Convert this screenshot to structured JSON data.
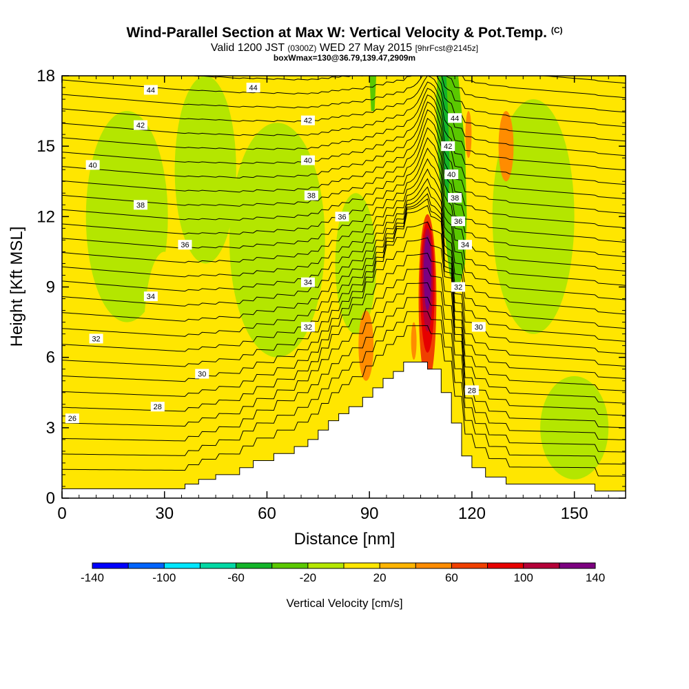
{
  "header": {
    "title": "Wind-Parallel Section at Max W: Vertical Velocity & Pot.Temp.",
    "copyright": "(C)",
    "valid_prefix": "Valid 1200 JST",
    "valid_utc": "(0300Z)",
    "valid_date": "WED 27 May 2015",
    "forecast": "[9hrFcst@2145z]",
    "box_info": "boxWmax=130@36.79,139.47,2909m"
  },
  "chart_data": {
    "type": "heatmap",
    "title": "Wind-Parallel Section at Max W: Vertical Velocity & Pot.Temp.",
    "xlabel": "Distance [nm]",
    "ylabel": "Height [Kft MSL]",
    "xlim": [
      0,
      165
    ],
    "ylim": [
      0,
      18
    ],
    "xticks": [
      "0",
      "30",
      "60",
      "90",
      "120",
      "150"
    ],
    "yticks": [
      "0",
      "3",
      "6",
      "9",
      "12",
      "15",
      "18"
    ],
    "colorbar": {
      "label": "Vertical Velocity [cm/s]",
      "tick_labels": [
        "-140",
        "-100",
        "-60",
        "-20",
        "20",
        "60",
        "100",
        "140"
      ],
      "colors": [
        "#0000ff",
        "#0064ff",
        "#00e6ff",
        "#00d8a4",
        "#12b428",
        "#5ac800",
        "#b4e600",
        "#ffe600",
        "#ffb400",
        "#ff8c00",
        "#f04000",
        "#e60000",
        "#b40038",
        "#7c0080"
      ]
    },
    "terrain_kft": [
      [
        0,
        0.4
      ],
      [
        36,
        0.4
      ],
      [
        36,
        0.6
      ],
      [
        40,
        0.6
      ],
      [
        40,
        0.8
      ],
      [
        45,
        0.8
      ],
      [
        45,
        1.0
      ],
      [
        52,
        1.0
      ],
      [
        52,
        1.3
      ],
      [
        56,
        1.3
      ],
      [
        56,
        1.6
      ],
      [
        62,
        1.6
      ],
      [
        62,
        1.9
      ],
      [
        68,
        1.9
      ],
      [
        68,
        2.2
      ],
      [
        72,
        2.2
      ],
      [
        72,
        2.5
      ],
      [
        75,
        2.5
      ],
      [
        75,
        2.9
      ],
      [
        78,
        2.9
      ],
      [
        78,
        3.3
      ],
      [
        81,
        3.3
      ],
      [
        81,
        3.6
      ],
      [
        84,
        3.6
      ],
      [
        84,
        3.9
      ],
      [
        88,
        3.9
      ],
      [
        88,
        4.3
      ],
      [
        91,
        4.3
      ],
      [
        91,
        4.7
      ],
      [
        94,
        4.7
      ],
      [
        94,
        5.1
      ],
      [
        97,
        5.1
      ],
      [
        97,
        5.4
      ],
      [
        100,
        5.4
      ],
      [
        100,
        5.8
      ],
      [
        107,
        5.8
      ],
      [
        107,
        5.5
      ],
      [
        111,
        5.5
      ],
      [
        111,
        4.5
      ],
      [
        114,
        4.5
      ],
      [
        114,
        3.2
      ],
      [
        117,
        3.2
      ],
      [
        117,
        1.8
      ],
      [
        120,
        1.8
      ],
      [
        120,
        1.3
      ],
      [
        124,
        1.3
      ],
      [
        124,
        0.9
      ],
      [
        130,
        0.9
      ],
      [
        130,
        0.6
      ],
      [
        156,
        0.6
      ],
      [
        156,
        0.3
      ],
      [
        165,
        0.3
      ]
    ],
    "theta_labels": [
      {
        "text": "44",
        "x": 26,
        "y": 17.4
      },
      {
        "text": "44",
        "x": 56,
        "y": 17.5
      },
      {
        "text": "42",
        "x": 23,
        "y": 15.9
      },
      {
        "text": "42",
        "x": 72,
        "y": 16.1
      },
      {
        "text": "40",
        "x": 9,
        "y": 14.2
      },
      {
        "text": "40",
        "x": 72,
        "y": 14.4
      },
      {
        "text": "38",
        "x": 23,
        "y": 12.5
      },
      {
        "text": "38",
        "x": 73,
        "y": 12.9
      },
      {
        "text": "36",
        "x": 36,
        "y": 10.8
      },
      {
        "text": "36",
        "x": 82,
        "y": 12.0
      },
      {
        "text": "34",
        "x": 26,
        "y": 8.6
      },
      {
        "text": "34",
        "x": 72,
        "y": 9.2
      },
      {
        "text": "32",
        "x": 10,
        "y": 6.8
      },
      {
        "text": "32",
        "x": 72,
        "y": 7.3
      },
      {
        "text": "30",
        "x": 41,
        "y": 5.3
      },
      {
        "text": "30",
        "x": 122,
        "y": 7.3
      },
      {
        "text": "28",
        "x": 28,
        "y": 3.9
      },
      {
        "text": "28",
        "x": 120,
        "y": 4.6
      },
      {
        "text": "26",
        "x": 3,
        "y": 3.4
      },
      {
        "text": "44",
        "x": 115,
        "y": 16.2
      },
      {
        "text": "42",
        "x": 113,
        "y": 15.0
      },
      {
        "text": "40",
        "x": 114,
        "y": 13.8
      },
      {
        "text": "38",
        "x": 115,
        "y": 12.8
      },
      {
        "text": "36",
        "x": 116,
        "y": 11.8
      },
      {
        "text": "34",
        "x": 118,
        "y": 10.8
      },
      {
        "text": "32",
        "x": 116,
        "y": 9.0
      }
    ],
    "w_features": [
      {
        "shape": "ellipse",
        "cx": 19,
        "cy": 12.0,
        "rx": 12,
        "ry": 4.5,
        "value": -20
      },
      {
        "shape": "ellipse",
        "cx": 42,
        "cy": 14.0,
        "rx": 9,
        "ry": 4.0,
        "value": -20
      },
      {
        "shape": "ellipse",
        "cx": 63,
        "cy": 11.0,
        "rx": 14,
        "ry": 5.0,
        "value": -20
      },
      {
        "shape": "ellipse",
        "cx": 86,
        "cy": 10.0,
        "rx": 6,
        "ry": 3.0,
        "value": -20
      },
      {
        "shape": "ellipse",
        "cx": 138,
        "cy": 12.0,
        "rx": 12,
        "ry": 5.0,
        "value": -20
      },
      {
        "shape": "ellipse",
        "cx": 150,
        "cy": 3.0,
        "rx": 10,
        "ry": 2.2,
        "value": -20
      },
      {
        "shape": "ellipse",
        "cx": 30,
        "cy": 7.0,
        "rx": 6,
        "ry": 3.5,
        "value": 0
      },
      {
        "shape": "ellipse",
        "cx": 92,
        "cy": 15.0,
        "rx": 5,
        "ry": 2.5,
        "value": 0
      },
      {
        "shape": "ellipse",
        "cx": 126,
        "cy": 2.0,
        "rx": 5,
        "ry": 1.5,
        "value": 0
      },
      {
        "shape": "ellipse",
        "cx": 89,
        "cy": 6.5,
        "rx": 2.2,
        "ry": 1.5,
        "value": 40
      },
      {
        "shape": "ellipse",
        "cx": 130,
        "cy": 15.0,
        "rx": 2.2,
        "ry": 1.5,
        "value": 40
      },
      {
        "shape": "ellipse",
        "cx": 103,
        "cy": 6.7,
        "rx": 0.8,
        "ry": 0.8,
        "value": 40
      },
      {
        "shape": "ellipse",
        "cx": 119,
        "cy": 15.5,
        "rx": 0.9,
        "ry": 1.0,
        "value": 40
      },
      {
        "shape": "ellipse",
        "cx": 114,
        "cy": 17.6,
        "rx": 2.0,
        "ry": 0.6,
        "value": 60
      },
      {
        "shape": "ellipse",
        "cx": 114.5,
        "cy": 17.7,
        "rx": 0.8,
        "ry": 0.3,
        "value": 80
      },
      {
        "shape": "poly",
        "value": -40,
        "points": [
          [
            110,
            18
          ],
          [
            116,
            18
          ],
          [
            118,
            15
          ],
          [
            118.5,
            12
          ],
          [
            118,
            10
          ],
          [
            116,
            8.8
          ],
          [
            113.5,
            9.5
          ],
          [
            111.5,
            12
          ],
          [
            110,
            14.5
          ],
          [
            109.5,
            17
          ]
        ]
      },
      {
        "shape": "poly",
        "value": -60,
        "points": [
          [
            111,
            18
          ],
          [
            112.5,
            18
          ],
          [
            113,
            16.5
          ],
          [
            113.5,
            14
          ],
          [
            113,
            12.5
          ],
          [
            112,
            13.5
          ],
          [
            111.5,
            15.5
          ]
        ]
      },
      {
        "shape": "poly",
        "value": -40,
        "points": [
          [
            90,
            18
          ],
          [
            92,
            18
          ],
          [
            91.5,
            16.5
          ],
          [
            90.5,
            16.5
          ]
        ]
      },
      {
        "shape": "ellipse",
        "cx": 107,
        "cy": 8.5,
        "rx": 2.6,
        "ry": 3.6,
        "value": 60
      },
      {
        "shape": "ellipse",
        "cx": 107,
        "cy": 9.0,
        "rx": 2.1,
        "ry": 2.8,
        "value": 80
      },
      {
        "shape": "ellipse",
        "cx": 107,
        "cy": 9.3,
        "rx": 1.6,
        "ry": 2.2,
        "value": 100
      },
      {
        "shape": "ellipse",
        "cx": 107,
        "cy": 9.6,
        "rx": 1.1,
        "ry": 1.6,
        "value": 120
      },
      {
        "shape": "ellipse",
        "cx": 107,
        "cy": 9.8,
        "rx": 0.6,
        "ry": 1.0,
        "value": 140
      }
    ]
  }
}
